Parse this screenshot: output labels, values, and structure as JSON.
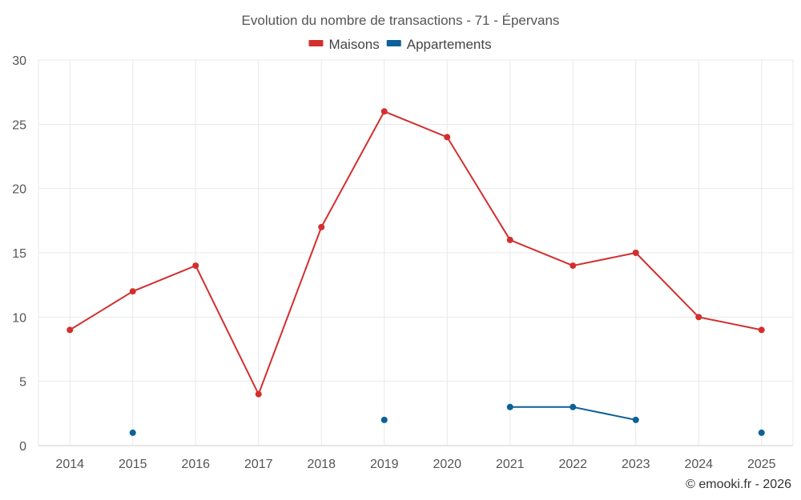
{
  "chart_data": {
    "type": "line",
    "title": "Evolution du nombre de transactions - 71 - Épervans",
    "categories": [
      "2014",
      "2015",
      "2016",
      "2017",
      "2018",
      "2019",
      "2020",
      "2021",
      "2022",
      "2023",
      "2024",
      "2025"
    ],
    "ylim": [
      0,
      30
    ],
    "yticks": [
      0,
      5,
      10,
      15,
      20,
      25,
      30
    ],
    "xlabel": "",
    "ylabel": "",
    "grid": true,
    "legend_position": "top-center",
    "series": [
      {
        "name": "Maisons",
        "color": "#d32f2f",
        "values": [
          9,
          12,
          14,
          4,
          17,
          26,
          24,
          16,
          14,
          15,
          10,
          9
        ]
      },
      {
        "name": "Appartements",
        "color": "#0d6199",
        "values": [
          null,
          1,
          null,
          null,
          null,
          2,
          null,
          3,
          3,
          2,
          null,
          1
        ]
      }
    ]
  },
  "credit": "© emooki.fr - 2026"
}
